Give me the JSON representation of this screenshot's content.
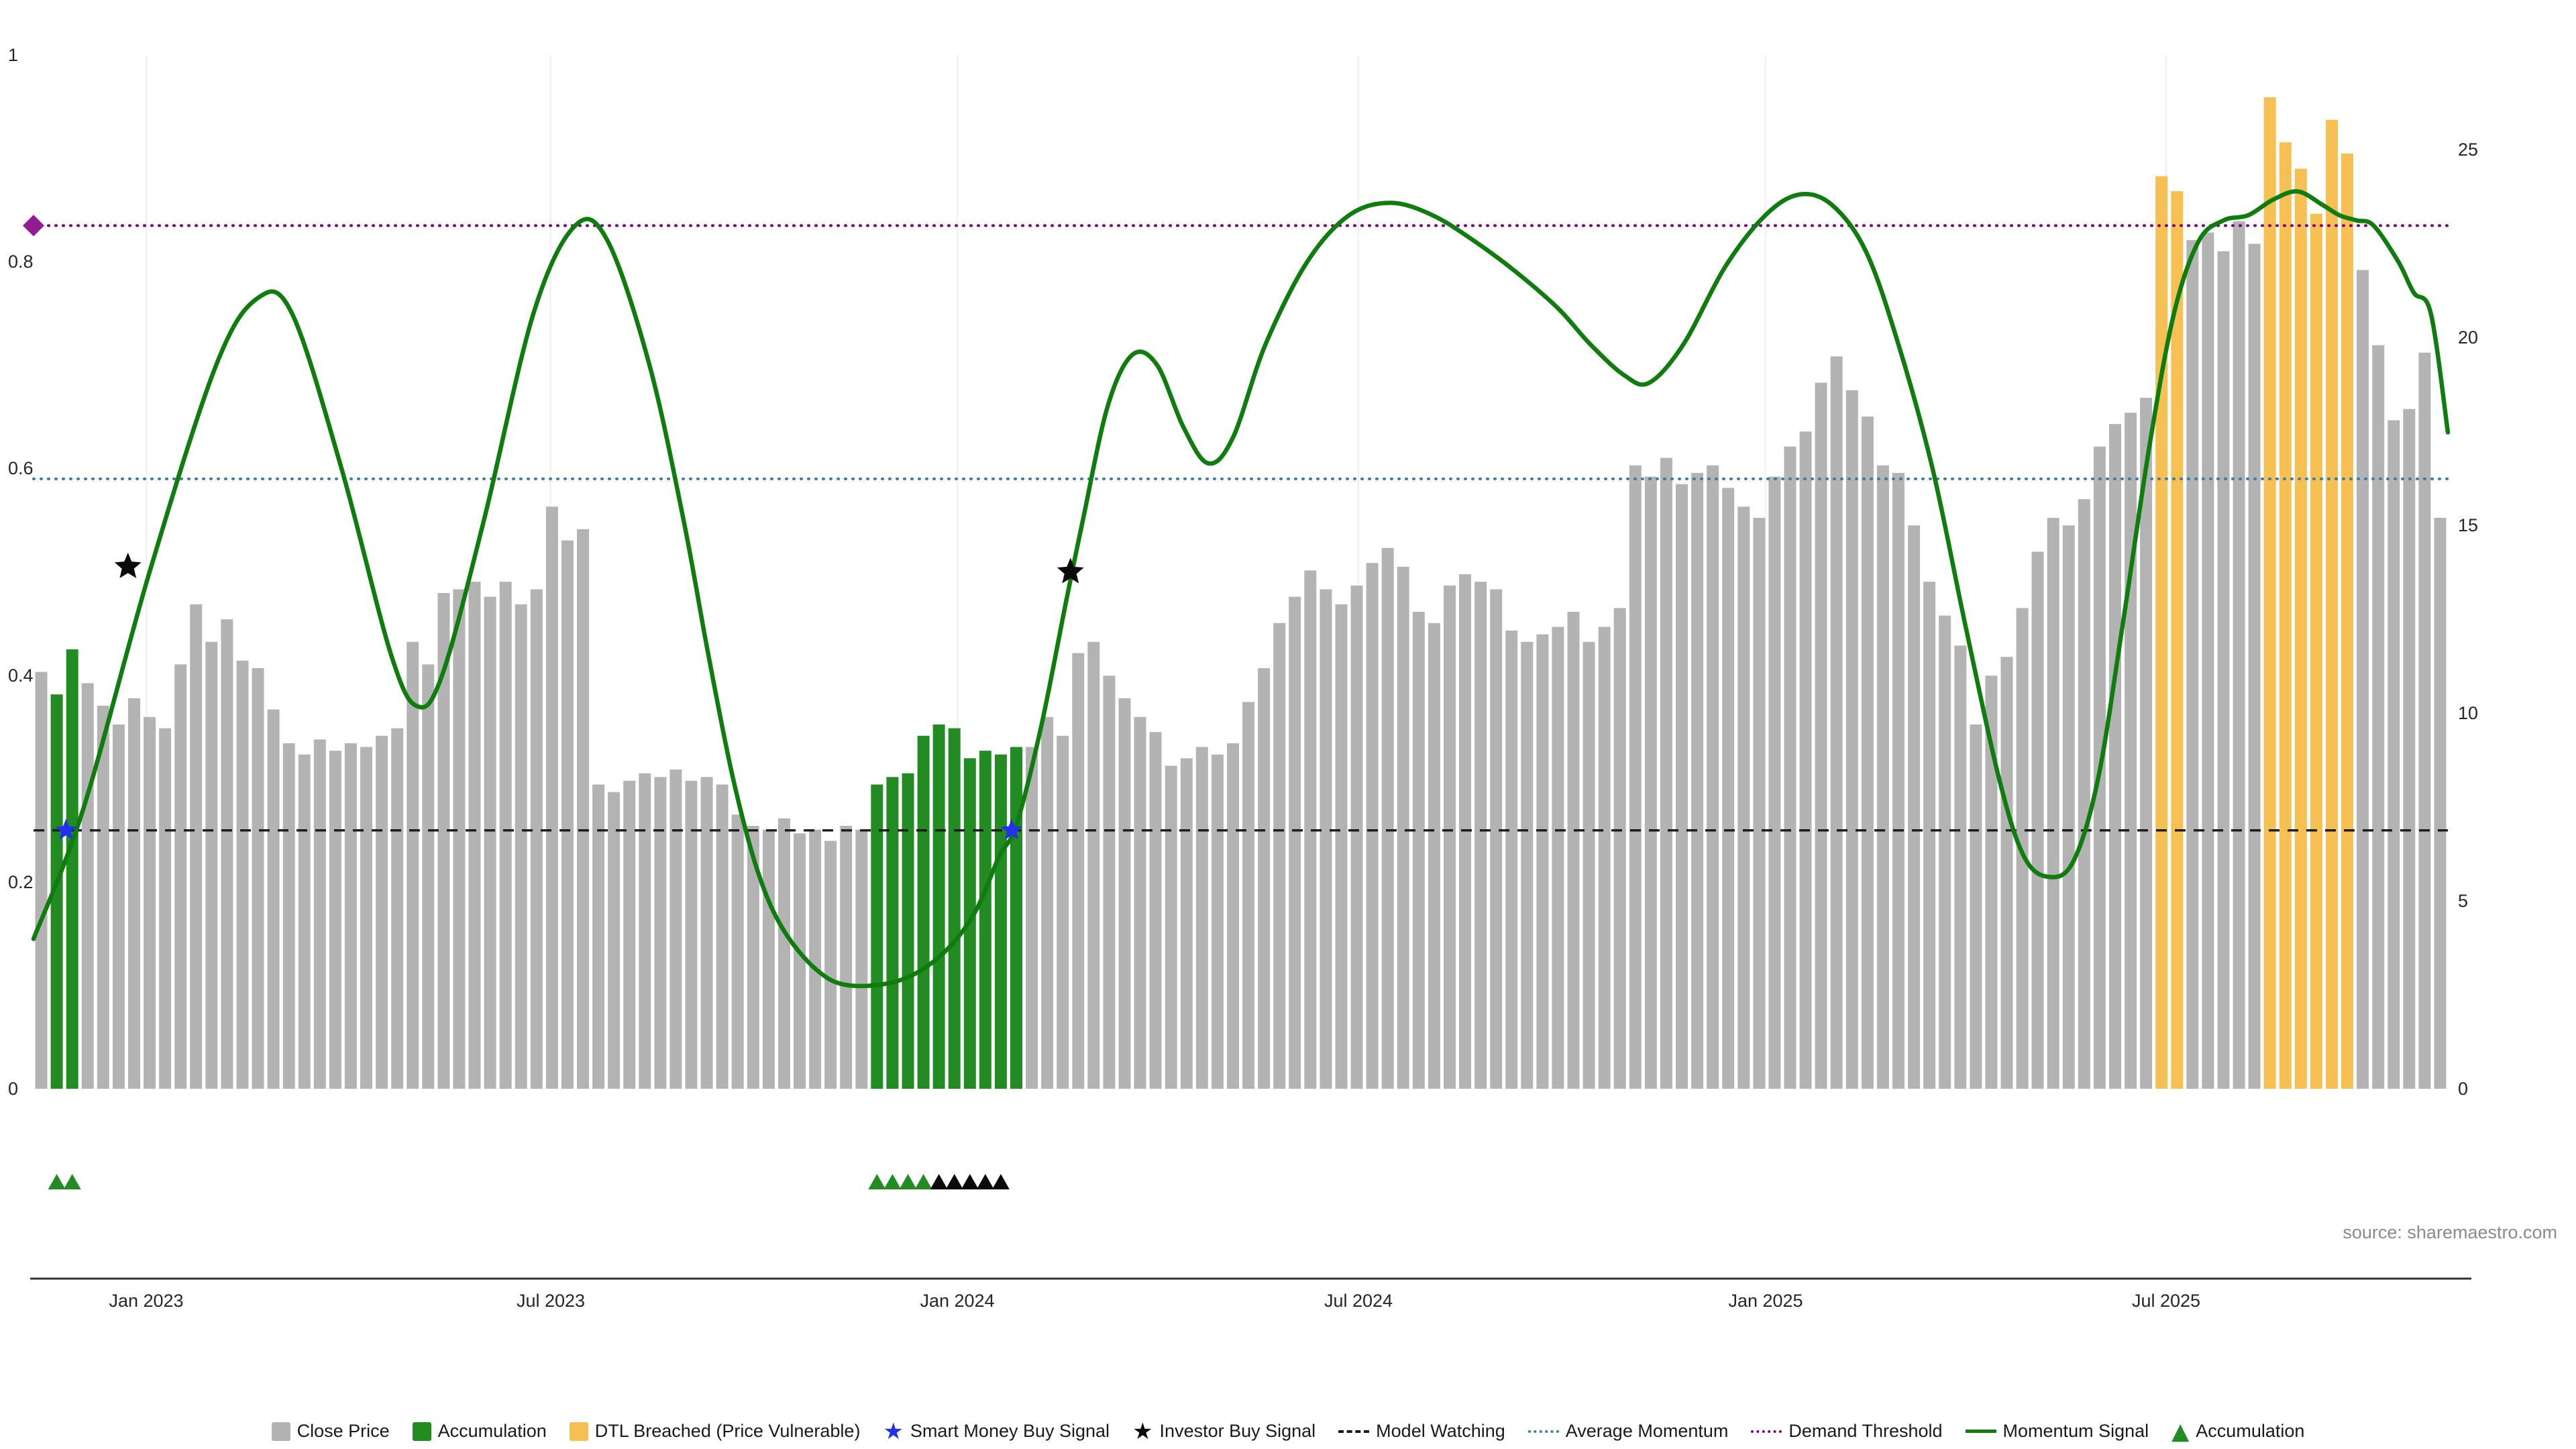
{
  "source": "source: sharemaestro.com",
  "colors": {
    "close_price": "#b3b3b3",
    "accumulation": "#228B22",
    "dtl_breached": "#F7C052",
    "momentum_signal": "#0e7d0e",
    "model_watching": "#1a1a1a",
    "average_momentum": "#3a7ca5",
    "demand_threshold": "#800080",
    "smart_money_star": "#2330EE",
    "investor_star": "#0a0a0a",
    "demand_diamond": "#951B95",
    "axis_text": "#262626",
    "gridline": "#efefef",
    "axis_line": "#333333"
  },
  "legend": [
    {
      "label": "Close Price",
      "type": "square",
      "color": "#b3b3b3",
      "icon": "close-price-swatch-icon"
    },
    {
      "label": "Accumulation",
      "type": "square",
      "color": "#228B22",
      "icon": "accumulation-swatch-icon"
    },
    {
      "label": "DTL Breached (Price Vulnerable)",
      "type": "square",
      "color": "#F7C052",
      "icon": "dtl-breached-swatch-icon"
    },
    {
      "label": "Smart Money Buy Signal",
      "type": "star",
      "color": "#2330EE",
      "icon": "smart-money-star-icon"
    },
    {
      "label": "Investor Buy Signal",
      "type": "star",
      "color": "#0a0a0a",
      "icon": "investor-star-icon"
    },
    {
      "label": "Model Watching",
      "type": "dashed",
      "color": "#1a1a1a",
      "icon": "model-watching-line-icon"
    },
    {
      "label": "Average Momentum",
      "type": "dotted",
      "color": "#3a7ca5",
      "icon": "average-momentum-line-icon"
    },
    {
      "label": "Demand Threshold",
      "type": "dotted",
      "color": "#800080",
      "icon": "demand-threshold-line-icon"
    },
    {
      "label": "Momentum Signal",
      "type": "solid",
      "color": "#0e7d0e",
      "icon": "momentum-signal-line-icon"
    },
    {
      "label": "Accumulation",
      "type": "triangle",
      "color": "#228B22",
      "icon": "accumulation-triangle-icon"
    }
  ],
  "chart_data": {
    "type": "bar",
    "subtype": "dual-axis bar + smoothed line (weekly)",
    "title": "",
    "xlabel": "",
    "ylabel_left": "",
    "ylabel_right": "",
    "grid": "faint vertical gridlines at半 month ticks",
    "x_ticks": [
      {
        "label": "Jan 2023",
        "i": 6.8
      },
      {
        "label": "Jul 2023",
        "i": 32.9
      },
      {
        "label": "Jan 2024",
        "i": 59.2
      },
      {
        "label": "Jul 2024",
        "i": 85.1
      },
      {
        "label": "Jan 2025",
        "i": 111.4
      },
      {
        "label": "Jul 2025",
        "i": 137.3
      }
    ],
    "left_axis": {
      "range": [
        0,
        1
      ],
      "ticks": [
        "0",
        "0.2",
        "0.4",
        "0.6",
        "0.8",
        "1"
      ]
    },
    "right_axis": {
      "range": [
        0,
        27.5
      ],
      "ticks": [
        "0",
        "5",
        "10",
        "15",
        "20",
        "25"
      ]
    },
    "close_price": {
      "name": "Close Price",
      "axis": "right",
      "values": [
        11.1,
        10.5,
        11.7,
        10.8,
        10.2,
        9.7,
        10.4,
        9.9,
        9.6,
        11.3,
        12.9,
        11.9,
        12.5,
        11.4,
        11.2,
        10.1,
        9.2,
        8.9,
        9.3,
        9.0,
        9.2,
        9.1,
        9.4,
        9.6,
        11.9,
        11.3,
        13.2,
        13.3,
        13.5,
        13.1,
        13.5,
        12.9,
        13.3,
        15.5,
        14.6,
        14.9,
        8.1,
        7.9,
        8.2,
        8.4,
        8.3,
        8.5,
        8.2,
        8.3,
        8.1,
        7.3,
        7.0,
        6.9,
        7.2,
        6.8,
        6.9,
        6.6,
        7.0,
        6.9,
        8.1,
        8.3,
        8.4,
        9.4,
        9.7,
        9.6,
        8.8,
        9.0,
        8.9,
        9.1,
        9.1,
        9.9,
        9.4,
        11.6,
        11.9,
        11.0,
        10.4,
        9.9,
        9.5,
        8.6,
        8.8,
        9.1,
        8.9,
        9.2,
        10.3,
        11.2,
        12.4,
        13.1,
        13.8,
        13.3,
        12.9,
        13.4,
        14.0,
        14.4,
        13.9,
        12.7,
        12.4,
        13.4,
        13.7,
        13.5,
        13.3,
        12.2,
        11.9,
        12.1,
        12.3,
        12.7,
        11.9,
        12.3,
        12.8,
        16.6,
        16.3,
        16.8,
        16.1,
        16.4,
        16.6,
        16.0,
        15.5,
        15.2,
        16.3,
        17.1,
        17.5,
        18.8,
        19.5,
        18.6,
        17.9,
        16.6,
        16.4,
        15.0,
        13.5,
        12.6,
        11.8,
        9.7,
        11.0,
        11.5,
        12.8,
        14.3,
        15.2,
        15.0,
        15.7,
        17.1,
        17.7,
        18.0,
        18.4,
        24.3,
        23.9,
        22.6,
        22.8,
        22.3,
        23.1,
        22.5,
        26.4,
        25.2,
        24.5,
        23.3,
        25.8,
        24.9,
        21.8,
        19.8,
        17.8,
        18.1,
        19.6,
        15.2
      ]
    },
    "bar_states": {
      "accumulation_indices": [
        1,
        2,
        54,
        55,
        56,
        57,
        58,
        59,
        60,
        61,
        62,
        63
      ],
      "dtl_breached_indices": [
        137,
        138,
        144,
        145,
        146,
        147,
        148,
        149
      ]
    },
    "momentum_signal": {
      "name": "Momentum Signal",
      "axis": "left",
      "points": [
        [
          -0.5,
          0.145
        ],
        [
          2.7,
          0.27
        ],
        [
          7.0,
          0.5
        ],
        [
          11.3,
          0.7
        ],
        [
          14.0,
          0.765
        ],
        [
          16.2,
          0.75
        ],
        [
          19.4,
          0.6
        ],
        [
          22.6,
          0.42
        ],
        [
          24.3,
          0.37
        ],
        [
          25.9,
          0.4
        ],
        [
          28.6,
          0.55
        ],
        [
          31.8,
          0.75
        ],
        [
          34.5,
          0.835
        ],
        [
          36.6,
          0.82
        ],
        [
          39.3,
          0.7
        ],
        [
          41.5,
          0.55
        ],
        [
          43.1,
          0.42
        ],
        [
          44.7,
          0.3
        ],
        [
          46.3,
          0.21
        ],
        [
          47.9,
          0.155
        ],
        [
          50.1,
          0.115
        ],
        [
          52.2,
          0.1
        ],
        [
          55.5,
          0.105
        ],
        [
          58.2,
          0.13
        ],
        [
          60.3,
          0.17
        ],
        [
          61.9,
          0.225
        ],
        [
          63.0,
          0.255
        ],
        [
          64.6,
          0.35
        ],
        [
          66.2,
          0.47
        ],
        [
          67.3,
          0.55
        ],
        [
          68.9,
          0.66
        ],
        [
          70.5,
          0.71
        ],
        [
          72.1,
          0.7
        ],
        [
          73.8,
          0.64
        ],
        [
          75.4,
          0.605
        ],
        [
          77.0,
          0.63
        ],
        [
          79.1,
          0.72
        ],
        [
          81.8,
          0.8
        ],
        [
          84.5,
          0.845
        ],
        [
          87.2,
          0.857
        ],
        [
          89.9,
          0.845
        ],
        [
          92.6,
          0.82
        ],
        [
          95.3,
          0.79
        ],
        [
          98.0,
          0.755
        ],
        [
          100.1,
          0.72
        ],
        [
          102.3,
          0.69
        ],
        [
          103.9,
          0.683
        ],
        [
          106.1,
          0.72
        ],
        [
          108.8,
          0.795
        ],
        [
          111.4,
          0.845
        ],
        [
          113.6,
          0.865
        ],
        [
          115.7,
          0.855
        ],
        [
          117.9,
          0.81
        ],
        [
          120.0,
          0.72
        ],
        [
          122.2,
          0.6
        ],
        [
          124.3,
          0.45
        ],
        [
          126.5,
          0.3
        ],
        [
          128.1,
          0.225
        ],
        [
          129.7,
          0.205
        ],
        [
          131.3,
          0.22
        ],
        [
          132.9,
          0.3
        ],
        [
          134.5,
          0.45
        ],
        [
          136.2,
          0.62
        ],
        [
          137.8,
          0.75
        ],
        [
          139.4,
          0.82
        ],
        [
          141.0,
          0.84
        ],
        [
          142.6,
          0.845
        ],
        [
          144.2,
          0.86
        ],
        [
          145.8,
          0.868
        ],
        [
          147.4,
          0.855
        ],
        [
          148.5,
          0.845
        ],
        [
          149.6,
          0.84
        ],
        [
          150.7,
          0.835
        ],
        [
          152.3,
          0.8
        ],
        [
          153.3,
          0.77
        ],
        [
          154.4,
          0.75
        ],
        [
          155.5,
          0.635
        ]
      ]
    },
    "hlines": [
      {
        "name": "Model Watching",
        "value": 0.25,
        "axis": "left",
        "style": "dashed",
        "color": "#1a1a1a"
      },
      {
        "name": "Average Momentum",
        "value": 0.59,
        "axis": "left",
        "style": "dotted",
        "color": "#3a7ca5"
      },
      {
        "name": "Demand Threshold",
        "value": 0.835,
        "axis": "left",
        "style": "dotted",
        "color": "#800080"
      }
    ],
    "markers": {
      "smart_money_buy_signals": [
        {
          "i": 1.6,
          "y": 0.25
        },
        {
          "i": 62.7,
          "y": 0.25
        }
      ],
      "investor_buy_signals": [
        {
          "i": 5.6,
          "y": 0.505
        },
        {
          "i": 66.5,
          "y": 0.5
        }
      ],
      "demand_diamond": {
        "i": -0.5,
        "y": 0.835
      },
      "accumulation_triangles_green": [
        1,
        2,
        54,
        55,
        56,
        57
      ],
      "accumulation_triangles_black": [
        58,
        59,
        60,
        61,
        62
      ]
    }
  }
}
